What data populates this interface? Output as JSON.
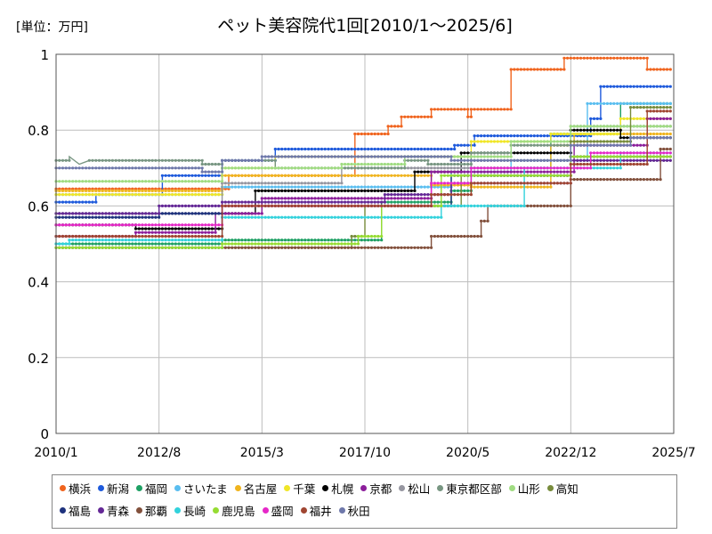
{
  "unit_label": "[単位：万円]",
  "chart_data": {
    "type": "line",
    "title": "ペット美容院代1回[2010/1～2025/6]",
    "xlabel": "",
    "ylabel": "",
    "ylim": [
      0,
      1
    ],
    "yticks": [
      0,
      0.2,
      0.4,
      0.6,
      0.8,
      1
    ],
    "ytick_labels": [
      "0",
      "0.2",
      "0.4",
      "0.6",
      "0.8",
      "1"
    ],
    "xlim": [
      "2010/1",
      "2025/7"
    ],
    "xticks": [
      "2010/1",
      "2012/8",
      "2015/3",
      "2017/10",
      "2020/5",
      "2022/12",
      "2025/7"
    ],
    "grid": true,
    "legend_position": "bottom",
    "series": [
      {
        "name": "横浜",
        "color": "#f0641e",
        "points": [
          [
            "2010/1",
            0.645
          ],
          [
            "2014/5",
            0.645
          ],
          [
            "2014/5",
            0.68
          ],
          [
            "2017/7",
            0.68
          ],
          [
            "2017/7",
            0.79
          ],
          [
            "2018/5",
            0.79
          ],
          [
            "2018/5",
            0.81
          ],
          [
            "2018/9",
            0.81
          ],
          [
            "2018/9",
            0.835
          ],
          [
            "2019/6",
            0.835
          ],
          [
            "2019/6",
            0.855
          ],
          [
            "2020/5",
            0.855
          ],
          [
            "2020/5",
            0.835
          ],
          [
            "2020/6",
            0.835
          ],
          [
            "2020/6",
            0.855
          ],
          [
            "2021/6",
            0.855
          ],
          [
            "2021/6",
            0.96
          ],
          [
            "2022/10",
            0.96
          ],
          [
            "2022/10",
            0.99
          ],
          [
            "2024/11",
            0.99
          ],
          [
            "2024/11",
            0.96
          ],
          [
            "2025/6",
            0.96
          ]
        ]
      },
      {
        "name": "新潟",
        "color": "#1e5adc",
        "points": [
          [
            "2010/1",
            0.61
          ],
          [
            "2011/1",
            0.61
          ],
          [
            "2011/1",
            0.63
          ],
          [
            "2012/9",
            0.63
          ],
          [
            "2012/9",
            0.68
          ],
          [
            "2014/3",
            0.68
          ],
          [
            "2014/3",
            0.72
          ],
          [
            "2015/7",
            0.72
          ],
          [
            "2015/7",
            0.75
          ],
          [
            "2020/1",
            0.75
          ],
          [
            "2020/1",
            0.76
          ],
          [
            "2020/7",
            0.76
          ],
          [
            "2020/7",
            0.785
          ],
          [
            "2023/6",
            0.785
          ],
          [
            "2023/6",
            0.83
          ],
          [
            "2023/9",
            0.83
          ],
          [
            "2023/9",
            0.915
          ],
          [
            "2025/6",
            0.915
          ]
        ]
      },
      {
        "name": "福岡",
        "color": "#1ea064",
        "points": [
          [
            "2010/1",
            0.5
          ],
          [
            "2014/3",
            0.5
          ],
          [
            "2014/3",
            0.51
          ],
          [
            "2018/3",
            0.51
          ],
          [
            "2018/3",
            0.61
          ],
          [
            "2019/12",
            0.61
          ],
          [
            "2019/12",
            0.64
          ],
          [
            "2020/6",
            0.64
          ],
          [
            "2020/6",
            0.7
          ],
          [
            "2022/6",
            0.7
          ],
          [
            "2022/6",
            0.79
          ],
          [
            "2024/3",
            0.79
          ],
          [
            "2024/3",
            0.87
          ],
          [
            "2025/6",
            0.87
          ]
        ]
      },
      {
        "name": "さいたま",
        "color": "#5abef0",
        "points": [
          [
            "2010/1",
            0.63
          ],
          [
            "2014/3",
            0.63
          ],
          [
            "2014/3",
            0.65
          ],
          [
            "2019/12",
            0.65
          ],
          [
            "2019/12",
            0.69
          ],
          [
            "2021/6",
            0.69
          ],
          [
            "2021/6",
            0.72
          ],
          [
            "2023/5",
            0.72
          ],
          [
            "2023/5",
            0.87
          ],
          [
            "2025/6",
            0.87
          ]
        ]
      },
      {
        "name": "名古屋",
        "color": "#f0b41e",
        "points": [
          [
            "2010/1",
            0.64
          ],
          [
            "2014/3",
            0.64
          ],
          [
            "2014/3",
            0.68
          ],
          [
            "2019/6",
            0.68
          ],
          [
            "2019/6",
            0.655
          ],
          [
            "2020/6",
            0.655
          ],
          [
            "2020/6",
            0.65
          ],
          [
            "2022/6",
            0.65
          ],
          [
            "2022/6",
            0.76
          ],
          [
            "2023/1",
            0.76
          ],
          [
            "2023/1",
            0.79
          ],
          [
            "2025/6",
            0.79
          ]
        ]
      },
      {
        "name": "千葉",
        "color": "#f0e628",
        "points": [
          [
            "2010/1",
            0.63
          ],
          [
            "2014/3",
            0.63
          ],
          [
            "2014/3",
            0.7
          ],
          [
            "2015/7",
            0.7
          ],
          [
            "2015/7",
            0.73
          ],
          [
            "2020/6",
            0.73
          ],
          [
            "2020/6",
            0.77
          ],
          [
            "2022/6",
            0.77
          ],
          [
            "2022/6",
            0.79
          ],
          [
            "2024/3",
            0.79
          ],
          [
            "2024/3",
            0.83
          ],
          [
            "2025/6",
            0.83
          ]
        ]
      },
      {
        "name": "札幌",
        "color": "#000000",
        "points": [
          [
            "2010/1",
            0.55
          ],
          [
            "2012/1",
            0.55
          ],
          [
            "2012/1",
            0.54
          ],
          [
            "2014/3",
            0.54
          ],
          [
            "2014/3",
            0.58
          ],
          [
            "2015/1",
            0.58
          ],
          [
            "2015/1",
            0.64
          ],
          [
            "2019/1",
            0.64
          ],
          [
            "2019/1",
            0.69
          ],
          [
            "2020/3",
            0.69
          ],
          [
            "2020/3",
            0.74
          ],
          [
            "2022/12",
            0.74
          ],
          [
            "2022/12",
            0.8
          ],
          [
            "2024/3",
            0.8
          ],
          [
            "2024/3",
            0.78
          ],
          [
            "2025/6",
            0.78
          ]
        ]
      },
      {
        "name": "京都",
        "color": "#8c1e9b",
        "points": [
          [
            "2010/1",
            0.52
          ],
          [
            "2012/1",
            0.52
          ],
          [
            "2012/1",
            0.53
          ],
          [
            "2014/1",
            0.53
          ],
          [
            "2014/1",
            0.58
          ],
          [
            "2015/3",
            0.58
          ],
          [
            "2015/3",
            0.62
          ],
          [
            "2019/6",
            0.62
          ],
          [
            "2019/6",
            0.69
          ],
          [
            "2023/1",
            0.69
          ],
          [
            "2023/1",
            0.76
          ],
          [
            "2024/11",
            0.76
          ],
          [
            "2024/11",
            0.83
          ],
          [
            "2025/6",
            0.83
          ]
        ]
      },
      {
        "name": "松山",
        "color": "#9696a0",
        "points": [
          [
            "2010/1",
            0.58
          ],
          [
            "2014/3",
            0.58
          ],
          [
            "2014/3",
            0.66
          ],
          [
            "2017/3",
            0.66
          ],
          [
            "2017/3",
            0.7
          ],
          [
            "2020/6",
            0.7
          ],
          [
            "2020/6",
            0.72
          ],
          [
            "2025/6",
            0.72
          ]
        ]
      },
      {
        "name": "東京都区部",
        "color": "#789682",
        "points": [
          [
            "2010/1",
            0.72
          ],
          [
            "2010/5",
            0.72
          ],
          [
            "2010/5",
            0.73
          ],
          [
            "2010/8",
            0.71
          ],
          [
            "2010/11",
            0.72
          ],
          [
            "2013/9",
            0.72
          ],
          [
            "2013/9",
            0.71
          ],
          [
            "2014/3",
            0.71
          ],
          [
            "2014/3",
            0.72
          ],
          [
            "2015/7",
            0.72
          ],
          [
            "2015/7",
            0.7
          ],
          [
            "2018/10",
            0.7
          ],
          [
            "2018/10",
            0.72
          ],
          [
            "2019/5",
            0.72
          ],
          [
            "2019/5",
            0.71
          ],
          [
            "2020/6",
            0.71
          ],
          [
            "2020/6",
            0.74
          ],
          [
            "2021/6",
            0.74
          ],
          [
            "2021/6",
            0.76
          ],
          [
            "2022/12",
            0.76
          ],
          [
            "2022/12",
            0.81
          ],
          [
            "2025/6",
            0.81
          ]
        ]
      },
      {
        "name": "山形",
        "color": "#a0dc82",
        "points": [
          [
            "2010/1",
            0.665
          ],
          [
            "2014/3",
            0.665
          ],
          [
            "2014/3",
            0.7
          ],
          [
            "2017/3",
            0.7
          ],
          [
            "2017/3",
            0.71
          ],
          [
            "2018/10",
            0.71
          ],
          [
            "2018/10",
            0.73
          ],
          [
            "2021/6",
            0.73
          ],
          [
            "2021/6",
            0.77
          ],
          [
            "2022/12",
            0.77
          ],
          [
            "2022/12",
            0.81
          ],
          [
            "2025/6",
            0.81
          ]
        ]
      },
      {
        "name": "高知",
        "color": "#788c3c",
        "points": [
          [
            "2010/1",
            0.49
          ],
          [
            "2017/6",
            0.49
          ],
          [
            "2017/6",
            0.52
          ],
          [
            "2017/10",
            0.52
          ],
          [
            "2017/10",
            0.6
          ],
          [
            "2020/3",
            0.6
          ],
          [
            "2020/3",
            0.68
          ],
          [
            "2022/12",
            0.68
          ],
          [
            "2022/12",
            0.77
          ],
          [
            "2024/6",
            0.77
          ],
          [
            "2024/6",
            0.86
          ],
          [
            "2025/6",
            0.86
          ]
        ]
      },
      {
        "name": "福島",
        "color": "#1e327d",
        "points": [
          [
            "2010/1",
            0.57
          ],
          [
            "2012/8",
            0.57
          ],
          [
            "2012/8",
            0.58
          ],
          [
            "2014/3",
            0.58
          ],
          [
            "2014/3",
            0.6
          ],
          [
            "2019/12",
            0.6
          ],
          [
            "2019/12",
            0.68
          ],
          [
            "2022/12",
            0.68
          ],
          [
            "2022/12",
            0.73
          ],
          [
            "2025/6",
            0.73
          ]
        ]
      },
      {
        "name": "青森",
        "color": "#642896",
        "points": [
          [
            "2010/1",
            0.58
          ],
          [
            "2012/8",
            0.58
          ],
          [
            "2012/8",
            0.6
          ],
          [
            "2014/3",
            0.6
          ],
          [
            "2014/3",
            0.61
          ],
          [
            "2018/4",
            0.61
          ],
          [
            "2018/4",
            0.63
          ],
          [
            "2019/12",
            0.63
          ],
          [
            "2019/12",
            0.66
          ],
          [
            "2022/12",
            0.66
          ],
          [
            "2022/12",
            0.72
          ],
          [
            "2025/6",
            0.72
          ]
        ]
      },
      {
        "name": "那覇",
        "color": "#82503c",
        "points": [
          [
            "2010/1",
            0.49
          ],
          [
            "2019/6",
            0.49
          ],
          [
            "2019/6",
            0.52
          ],
          [
            "2020/9",
            0.52
          ],
          [
            "2020/9",
            0.56
          ],
          [
            "2020/11",
            0.56
          ],
          [
            "2020/11",
            0.6
          ],
          [
            "2022/12",
            0.6
          ],
          [
            "2022/12",
            0.67
          ],
          [
            "2025/3",
            0.67
          ],
          [
            "2025/3",
            0.75
          ],
          [
            "2025/6",
            0.75
          ]
        ]
      },
      {
        "name": "長崎",
        "color": "#32d2dc",
        "points": [
          [
            "2010/1",
            0.5
          ],
          [
            "2010/5",
            0.5
          ],
          [
            "2010/5",
            0.51
          ],
          [
            "2014/3",
            0.51
          ],
          [
            "2014/3",
            0.57
          ],
          [
            "2019/9",
            0.57
          ],
          [
            "2019/9",
            0.6
          ],
          [
            "2021/10",
            0.6
          ],
          [
            "2021/10",
            0.7
          ],
          [
            "2024/3",
            0.7
          ],
          [
            "2024/3",
            0.74
          ],
          [
            "2025/6",
            0.74
          ]
        ]
      },
      {
        "name": "鹿児島",
        "color": "#96dc32",
        "points": [
          [
            "2010/1",
            0.49
          ],
          [
            "2014/3",
            0.49
          ],
          [
            "2014/3",
            0.5
          ],
          [
            "2017/8",
            0.5
          ],
          [
            "2017/8",
            0.52
          ],
          [
            "2018/3",
            0.52
          ],
          [
            "2018/3",
            0.6
          ],
          [
            "2019/9",
            0.6
          ],
          [
            "2019/9",
            0.68
          ],
          [
            "2022/12",
            0.68
          ],
          [
            "2022/12",
            0.73
          ],
          [
            "2025/6",
            0.73
          ]
        ]
      },
      {
        "name": "盛岡",
        "color": "#e628c8",
        "points": [
          [
            "2010/1",
            0.55
          ],
          [
            "2014/3",
            0.55
          ],
          [
            "2014/3",
            0.6
          ],
          [
            "2019/6",
            0.6
          ],
          [
            "2019/6",
            0.66
          ],
          [
            "2020/6",
            0.66
          ],
          [
            "2020/6",
            0.7
          ],
          [
            "2023/6",
            0.7
          ],
          [
            "2023/6",
            0.74
          ],
          [
            "2025/6",
            0.74
          ]
        ]
      },
      {
        "name": "福井",
        "color": "#a04632",
        "points": [
          [
            "2010/1",
            0.52
          ],
          [
            "2014/3",
            0.52
          ],
          [
            "2014/3",
            0.6
          ],
          [
            "2019/6",
            0.6
          ],
          [
            "2019/6",
            0.63
          ],
          [
            "2020/6",
            0.63
          ],
          [
            "2020/6",
            0.66
          ],
          [
            "2022/12",
            0.66
          ],
          [
            "2022/12",
            0.71
          ],
          [
            "2024/11",
            0.71
          ],
          [
            "2024/11",
            0.85
          ],
          [
            "2025/6",
            0.85
          ]
        ]
      },
      {
        "name": "秋田",
        "color": "#6e78aa",
        "points": [
          [
            "2010/1",
            0.7
          ],
          [
            "2013/9",
            0.7
          ],
          [
            "2013/9",
            0.69
          ],
          [
            "2014/3",
            0.69
          ],
          [
            "2014/3",
            0.72
          ],
          [
            "2015/3",
            0.72
          ],
          [
            "2015/3",
            0.73
          ],
          [
            "2019/12",
            0.73
          ],
          [
            "2019/12",
            0.72
          ],
          [
            "2022/12",
            0.72
          ],
          [
            "2022/12",
            0.76
          ],
          [
            "2024/6",
            0.76
          ],
          [
            "2024/6",
            0.78
          ],
          [
            "2025/6",
            0.78
          ]
        ]
      }
    ]
  }
}
